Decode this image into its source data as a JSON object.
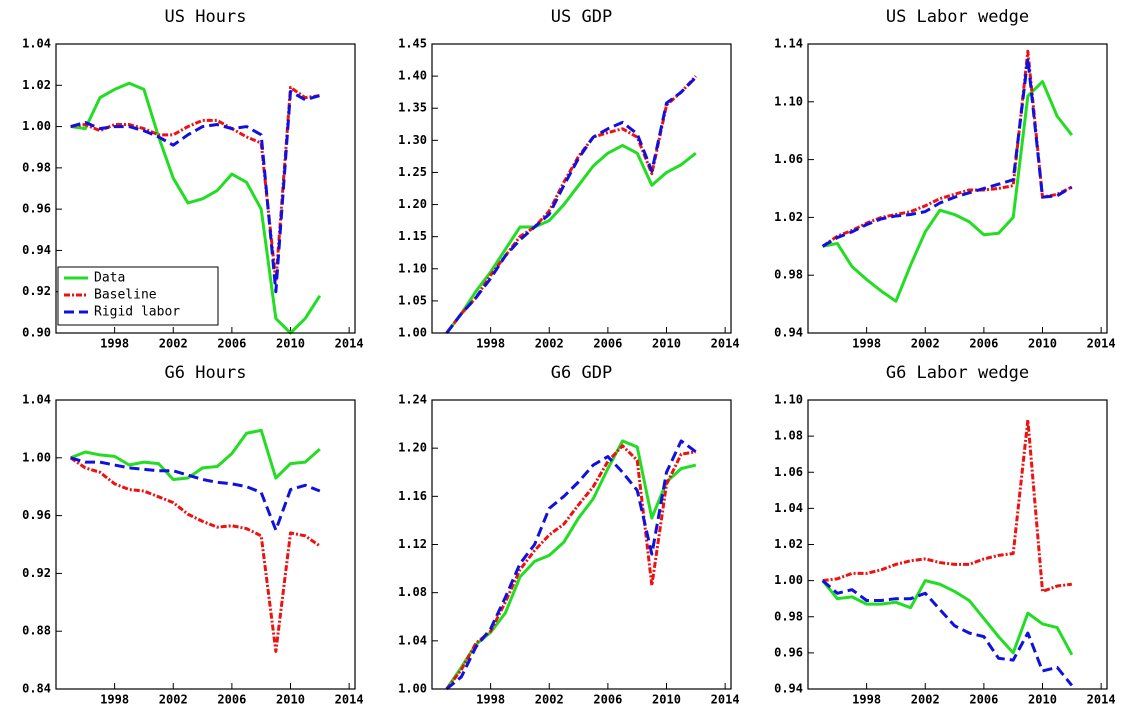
{
  "chart_data": [
    {
      "type": "line",
      "title": "US Hours",
      "x": [
        1995,
        1996,
        1997,
        1998,
        1999,
        2000,
        2001,
        2002,
        2003,
        2004,
        2005,
        2006,
        2007,
        2008,
        2009,
        2010,
        2011,
        2012
      ],
      "xlim": [
        1994,
        2014.4
      ],
      "xticks": [
        1998,
        2002,
        2006,
        2010,
        2014
      ],
      "ylim": [
        0.9,
        1.04
      ],
      "yticks": [
        {
          "value": 0.9,
          "label": "0.90"
        },
        0.92,
        0.94,
        0.96,
        0.98,
        {
          "value": 1.0,
          "label": "1.00"
        },
        1.02,
        1.04
      ],
      "legend": "lower left",
      "series": [
        {
          "name": "Data",
          "color": "#22dd22",
          "line_style": "solid",
          "values": [
            1.0,
            0.999,
            1.014,
            1.018,
            1.021,
            1.018,
            0.995,
            0.975,
            0.963,
            0.965,
            0.969,
            0.977,
            0.973,
            0.96,
            0.907,
            0.9,
            0.907,
            0.918
          ]
        },
        {
          "name": "Baseline",
          "color": "#ee1111",
          "line_style": "dashdot",
          "values": [
            1.0,
            1.001,
            0.998,
            1.001,
            1.001,
            0.999,
            0.996,
            0.996,
            1.0,
            1.003,
            1.003,
            0.999,
            0.995,
            0.992,
            0.925,
            1.019,
            1.014,
            1.015
          ]
        },
        {
          "name": "Rigid labor",
          "color": "#1111dd",
          "line_style": "dashed",
          "values": [
            1.0,
            1.002,
            0.999,
            1.0,
            1.0,
            0.998,
            0.995,
            0.991,
            0.996,
            1.0,
            1.001,
            0.999,
            1.0,
            0.996,
            0.92,
            1.017,
            1.013,
            1.015
          ]
        }
      ]
    },
    {
      "type": "line",
      "title": "US GDP",
      "x": [
        1995,
        1996,
        1997,
        1998,
        1999,
        2000,
        2001,
        2002,
        2003,
        2004,
        2005,
        2006,
        2007,
        2008,
        2009,
        2010,
        2011,
        2012
      ],
      "xlim": [
        1994,
        2014.4
      ],
      "xticks": [
        1998,
        2002,
        2006,
        2010,
        2014
      ],
      "ylim": [
        1.0,
        1.45
      ],
      "yticks": [
        {
          "value": 1.0,
          "label": "1.00"
        },
        1.05,
        {
          "value": 1.1,
          "label": "1.10"
        },
        1.15,
        {
          "value": 1.2,
          "label": "1.20"
        },
        1.25,
        {
          "value": 1.3,
          "label": "1.30"
        },
        1.35,
        {
          "value": 1.4,
          "label": "1.40"
        },
        1.45
      ],
      "series": [
        {
          "name": "Data",
          "color": "#22dd22",
          "line_style": "solid",
          "values": [
            1.0,
            1.03,
            1.065,
            1.095,
            1.13,
            1.165,
            1.165,
            1.175,
            1.2,
            1.23,
            1.26,
            1.28,
            1.292,
            1.28,
            1.23,
            1.25,
            1.262,
            1.28
          ]
        },
        {
          "name": "Baseline",
          "color": "#ee1111",
          "line_style": "dashdot",
          "values": [
            1.0,
            1.03,
            1.055,
            1.09,
            1.12,
            1.15,
            1.165,
            1.19,
            1.235,
            1.275,
            1.305,
            1.312,
            1.318,
            1.305,
            1.248,
            1.355,
            1.375,
            1.4
          ]
        },
        {
          "name": "Rigid labor",
          "color": "#1111dd",
          "line_style": "dashed",
          "values": [
            1.0,
            1.03,
            1.055,
            1.085,
            1.12,
            1.145,
            1.165,
            1.185,
            1.23,
            1.272,
            1.305,
            1.318,
            1.328,
            1.31,
            1.252,
            1.358,
            1.375,
            1.398
          ]
        }
      ]
    },
    {
      "type": "line",
      "title": "US Labor wedge",
      "x": [
        1995,
        1996,
        1997,
        1998,
        1999,
        2000,
        2001,
        2002,
        2003,
        2004,
        2005,
        2006,
        2007,
        2008,
        2009,
        2010,
        2011,
        2012
      ],
      "xlim": [
        1994,
        2014.4
      ],
      "xticks": [
        1998,
        2002,
        2006,
        2010,
        2014
      ],
      "ylim": [
        0.94,
        1.14
      ],
      "yticks": [
        0.94,
        0.98,
        1.02,
        1.06,
        {
          "value": 1.1,
          "label": "1.10"
        },
        1.14
      ],
      "series": [
        {
          "name": "Data",
          "color": "#22dd22",
          "line_style": "solid",
          "values": [
            1.0,
            1.002,
            0.986,
            0.977,
            0.969,
            0.962,
            0.987,
            1.01,
            1.025,
            1.022,
            1.017,
            1.008,
            1.009,
            1.02,
            1.104,
            1.114,
            1.09,
            1.077
          ]
        },
        {
          "name": "Baseline",
          "color": "#ee1111",
          "line_style": "dashdot",
          "values": [
            1.0,
            1.007,
            1.011,
            1.016,
            1.02,
            1.022,
            1.024,
            1.028,
            1.033,
            1.036,
            1.039,
            1.039,
            1.04,
            1.042,
            1.135,
            1.034,
            1.036,
            1.041
          ]
        },
        {
          "name": "Rigid labor",
          "color": "#1111dd",
          "line_style": "dashed",
          "values": [
            1.0,
            1.006,
            1.01,
            1.015,
            1.019,
            1.021,
            1.022,
            1.024,
            1.03,
            1.034,
            1.037,
            1.04,
            1.043,
            1.046,
            1.13,
            1.034,
            1.035,
            1.041
          ]
        }
      ]
    },
    {
      "type": "line",
      "title": "G6 Hours",
      "x": [
        1995,
        1996,
        1997,
        1998,
        1999,
        2000,
        2001,
        2002,
        2003,
        2004,
        2005,
        2006,
        2007,
        2008,
        2009,
        2010,
        2011,
        2012
      ],
      "xlim": [
        1994,
        2014.4
      ],
      "xticks": [
        1998,
        2002,
        2006,
        2010,
        2014
      ],
      "ylim": [
        0.84,
        1.04
      ],
      "yticks": [
        0.84,
        0.88,
        0.92,
        0.96,
        {
          "value": 1.0,
          "label": "1.00"
        },
        1.04
      ],
      "series": [
        {
          "name": "Data",
          "color": "#22dd22",
          "line_style": "solid",
          "values": [
            1.0,
            1.004,
            1.002,
            1.001,
            0.995,
            0.997,
            0.996,
            0.985,
            0.986,
            0.993,
            0.994,
            1.003,
            1.017,
            1.019,
            0.986,
            0.996,
            0.997,
            1.006
          ]
        },
        {
          "name": "Baseline",
          "color": "#ee1111",
          "line_style": "dashdot",
          "values": [
            1.0,
            0.993,
            0.99,
            0.982,
            0.978,
            0.977,
            0.973,
            0.969,
            0.961,
            0.956,
            0.952,
            0.953,
            0.951,
            0.946,
            0.866,
            0.948,
            0.946,
            0.939
          ]
        },
        {
          "name": "Rigid labor",
          "color": "#1111dd",
          "line_style": "dashed",
          "values": [
            1.0,
            0.997,
            0.997,
            0.995,
            0.993,
            0.992,
            0.991,
            0.991,
            0.988,
            0.985,
            0.983,
            0.982,
            0.98,
            0.976,
            0.95,
            0.978,
            0.981,
            0.977
          ]
        }
      ]
    },
    {
      "type": "line",
      "title": "G6 GDP",
      "x": [
        1995,
        1996,
        1997,
        1998,
        1999,
        2000,
        2001,
        2002,
        2003,
        2004,
        2005,
        2006,
        2007,
        2008,
        2009,
        2010,
        2011,
        2012
      ],
      "xlim": [
        1994,
        2014.4
      ],
      "xticks": [
        1998,
        2002,
        2006,
        2010,
        2014
      ],
      "ylim": [
        1.0,
        1.24
      ],
      "yticks": [
        {
          "value": 1.0,
          "label": "1.00"
        },
        1.04,
        1.08,
        1.12,
        1.16,
        {
          "value": 1.2,
          "label": "1.20"
        },
        1.24
      ],
      "series": [
        {
          "name": "Data",
          "color": "#22dd22",
          "line_style": "solid",
          "values": [
            1.0,
            1.018,
            1.037,
            1.047,
            1.063,
            1.093,
            1.106,
            1.111,
            1.122,
            1.142,
            1.158,
            1.183,
            1.206,
            1.201,
            1.142,
            1.172,
            1.183,
            1.186
          ]
        },
        {
          "name": "Baseline",
          "color": "#ee1111",
          "line_style": "dashdot",
          "values": [
            1.0,
            1.016,
            1.038,
            1.048,
            1.072,
            1.099,
            1.115,
            1.128,
            1.137,
            1.153,
            1.168,
            1.189,
            1.202,
            1.19,
            1.086,
            1.17,
            1.195,
            1.197
          ]
        },
        {
          "name": "Rigid labor",
          "color": "#1111dd",
          "line_style": "dashed",
          "values": [
            1.0,
            1.01,
            1.035,
            1.05,
            1.076,
            1.104,
            1.12,
            1.15,
            1.16,
            1.172,
            1.186,
            1.193,
            1.18,
            1.165,
            1.112,
            1.18,
            1.206,
            1.197
          ]
        }
      ]
    },
    {
      "type": "line",
      "title": "G6 Labor wedge",
      "x": [
        1995,
        1996,
        1997,
        1998,
        1999,
        2000,
        2001,
        2002,
        2003,
        2004,
        2005,
        2006,
        2007,
        2008,
        2009,
        2010,
        2011,
        2012
      ],
      "xlim": [
        1994,
        2014.4
      ],
      "xticks": [
        1998,
        2002,
        2006,
        2010,
        2014
      ],
      "ylim": [
        0.94,
        1.1
      ],
      "yticks": [
        0.94,
        0.96,
        0.98,
        {
          "value": 1.0,
          "label": "1.00"
        },
        1.02,
        1.04,
        1.06,
        1.08,
        {
          "value": 1.1,
          "label": "1.10"
        }
      ],
      "series": [
        {
          "name": "Data",
          "color": "#22dd22",
          "line_style": "solid",
          "values": [
            1.0,
            0.99,
            0.991,
            0.987,
            0.987,
            0.988,
            0.985,
            1.0,
            0.998,
            0.994,
            0.989,
            0.979,
            0.969,
            0.96,
            0.982,
            0.976,
            0.974,
            0.959
          ]
        },
        {
          "name": "Baseline",
          "color": "#ee1111",
          "line_style": "dashdot",
          "values": [
            1.0,
            1.001,
            1.004,
            1.004,
            1.006,
            1.009,
            1.011,
            1.012,
            1.01,
            1.009,
            1.009,
            1.012,
            1.014,
            1.015,
            1.089,
            0.994,
            0.997,
            0.998
          ]
        },
        {
          "name": "Rigid labor",
          "color": "#1111dd",
          "line_style": "dashed",
          "values": [
            1.0,
            0.993,
            0.995,
            0.989,
            0.989,
            0.99,
            0.99,
            0.993,
            0.984,
            0.975,
            0.971,
            0.969,
            0.957,
            0.956,
            0.971,
            0.95,
            0.952,
            0.942
          ]
        }
      ]
    }
  ]
}
